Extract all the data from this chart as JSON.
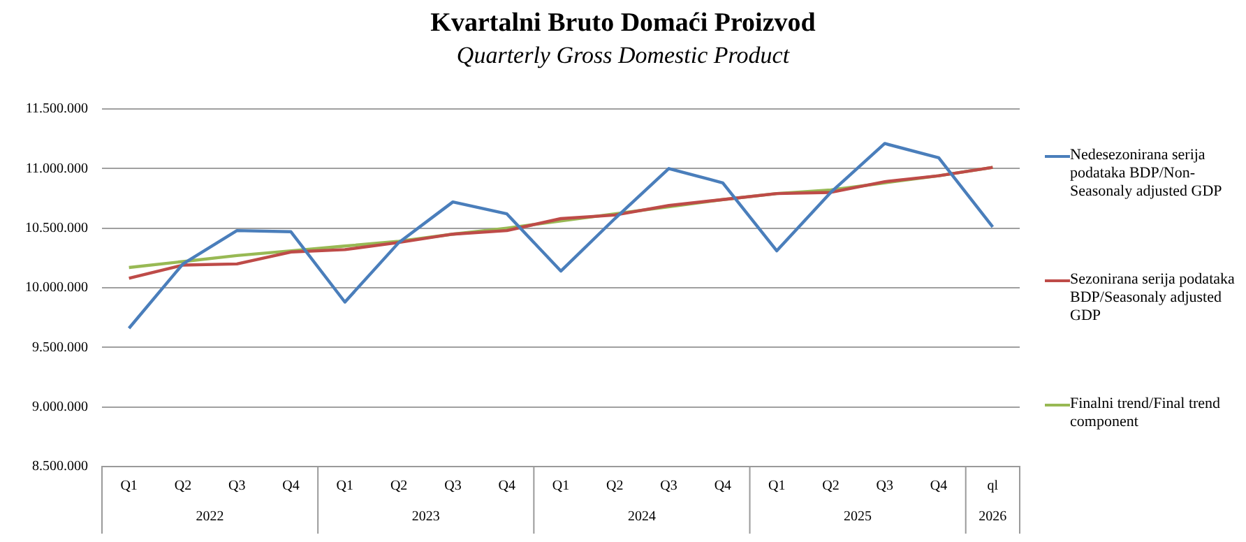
{
  "chart_data": {
    "type": "line",
    "title": "Kvartalni Bruto Domaći Proizvod",
    "subtitle": "Quarterly Gross Domestic Product",
    "categories": [
      "Q1",
      "Q2",
      "Q3",
      "Q4",
      "Q1",
      "Q2",
      "Q3",
      "Q4",
      "Q1",
      "Q2",
      "Q3",
      "Q4",
      "Q1",
      "Q2",
      "Q3",
      "Q4",
      "ql"
    ],
    "annotations": [
      "2022",
      "2023",
      "2024",
      "2025",
      "2026"
    ],
    "series": [
      {
        "name": "Nedesezonirana serija podataka BDP/Non-Seasonaly adjusted GDP",
        "color": "#4a7ebb",
        "values": [
          9660000,
          10200000,
          10480000,
          10470000,
          9880000,
          10380000,
          10720000,
          10620000,
          10140000,
          10580000,
          11000000,
          10880000,
          10310000,
          10800000,
          11210000,
          11090000,
          10510000
        ]
      },
      {
        "name": "Sezonirana serija podataka BDP/Seasonaly adjusted GDP",
        "color": "#be4b48",
        "values": [
          10080000,
          10190000,
          10200000,
          10300000,
          10320000,
          10380000,
          10450000,
          10480000,
          10580000,
          10610000,
          10690000,
          10740000,
          10790000,
          10800000,
          10890000,
          10940000,
          11010000
        ]
      },
      {
        "name": "Finalni trend/Final trend component",
        "color": "#98b954",
        "values": [
          10170000,
          10220000,
          10270000,
          10310000,
          10350000,
          10390000,
          10450000,
          10500000,
          10560000,
          10620000,
          10680000,
          10740000,
          10790000,
          10820000,
          10880000,
          10940000,
          11010000
        ]
      }
    ],
    "ylim": [
      8500000,
      11500000
    ],
    "yticks": [
      {
        "value": 8500000,
        "label": "8.500.000"
      },
      {
        "value": 9000000,
        "label": "9.000.000"
      },
      {
        "value": 9500000,
        "label": "9.500.000"
      },
      {
        "value": 10000000,
        "label": "10.000.000"
      },
      {
        "value": 10500000,
        "label": "10.500.000"
      },
      {
        "value": 11000000,
        "label": "11.000.000"
      },
      {
        "value": 11500000,
        "label": "11.500.000"
      }
    ],
    "grid": "y",
    "legend": "right",
    "marker": "none",
    "line_style": "solid"
  }
}
